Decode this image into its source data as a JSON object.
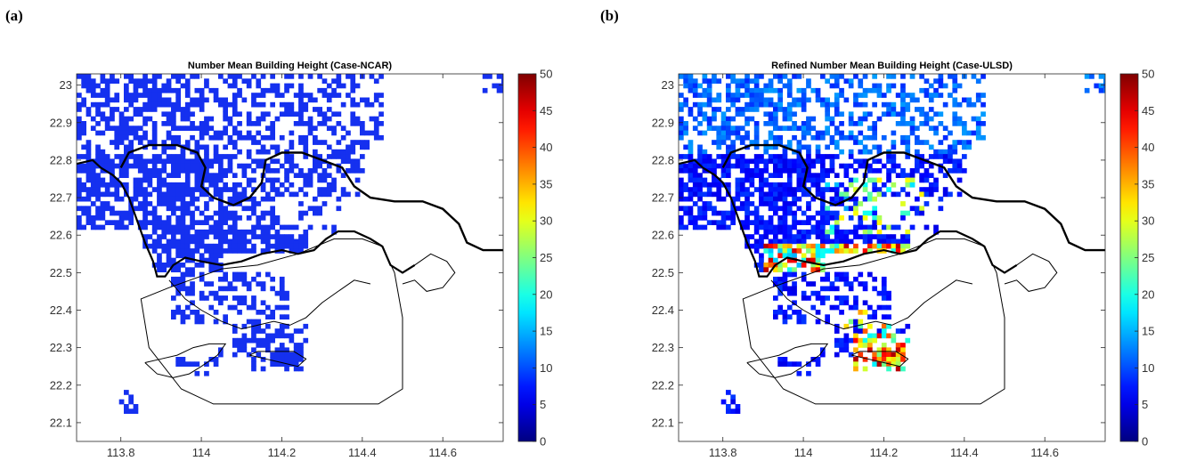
{
  "figure": {
    "label_a": "(a)",
    "label_b": "(b)"
  },
  "chart_data": [
    {
      "type": "heatmap",
      "panel": "(a)",
      "title": "Number Mean Building Height (Case-NCAR)",
      "xlabel": "",
      "ylabel": "",
      "xlim": [
        113.69,
        114.75
      ],
      "ylim": [
        22.05,
        23.03
      ],
      "x_ticks": [
        "113.8",
        "114",
        "114.2",
        "114.4",
        "114.6"
      ],
      "y_ticks": [
        "23",
        "22.9",
        "22.8",
        "22.7",
        "22.6",
        "22.5",
        "22.4",
        "22.3",
        "22.2",
        "22.1"
      ],
      "colorbar": {
        "min": 0,
        "max": 50,
        "ticks": [
          "50",
          "45",
          "40",
          "35",
          "30",
          "25",
          "20",
          "15",
          "10",
          "5",
          "0"
        ],
        "colormap": "jet"
      },
      "values_description_note": "",
      "urban_value_typical": 5
    },
    {
      "type": "heatmap",
      "panel": "(b)",
      "title": "Refined Number Mean Building Height (Case-ULSD)",
      "xlabel": "",
      "ylabel": "",
      "xlim": [
        113.69,
        114.75
      ],
      "ylim": [
        22.05,
        23.03
      ],
      "x_ticks": [
        "113.8",
        "114",
        "114.2",
        "114.4",
        "114.6"
      ],
      "y_ticks": [
        "23",
        "22.9",
        "22.8",
        "22.7",
        "22.6",
        "22.5",
        "22.4",
        "22.3",
        "22.2",
        "22.1"
      ],
      "colorbar": {
        "min": 0,
        "max": 50,
        "ticks": [
          "50",
          "45",
          "40",
          "35",
          "30",
          "25",
          "20",
          "15",
          "10",
          "5",
          "0"
        ],
        "colormap": "jet"
      },
      "urban_value_range": [
        5,
        48
      ]
    }
  ]
}
